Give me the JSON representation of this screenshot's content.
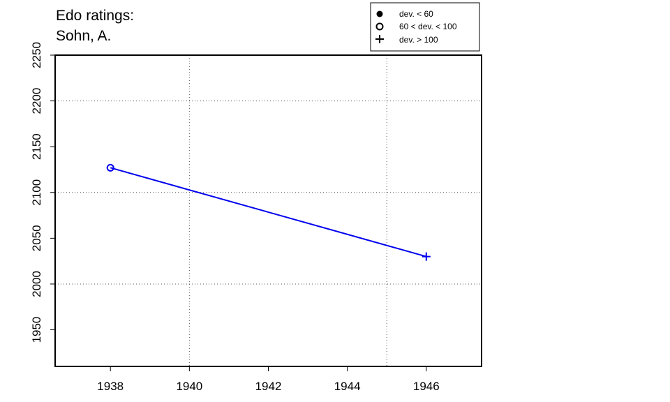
{
  "chart_data": {
    "type": "line",
    "title_lines": [
      "Edo ratings:",
      "Sohn, A."
    ],
    "xlabel": "",
    "ylabel": "",
    "xlim": [
      1936.6,
      1947.4
    ],
    "ylim": [
      1910,
      2250
    ],
    "x_ticks": [
      1938,
      1940,
      1942,
      1944,
      1946
    ],
    "y_ticks": [
      1950,
      2000,
      2050,
      2100,
      2150,
      2200,
      2250
    ],
    "x_grid": [
      1940,
      1945
    ],
    "y_grid": [
      2000,
      2100,
      2200
    ],
    "grid": true,
    "legend_placement": "top-right",
    "legend": [
      {
        "symbol": "filled-circle",
        "label": "dev. < 60"
      },
      {
        "symbol": "open-circle",
        "label": "60 < dev. < 100"
      },
      {
        "symbol": "plus",
        "label": "dev. > 100"
      }
    ],
    "series": [
      {
        "color": "#0000ee",
        "points": [
          {
            "x": 1938,
            "y": 2127,
            "marker": "open-circle"
          },
          {
            "x": 1946,
            "y": 2030,
            "marker": "plus"
          }
        ]
      }
    ]
  }
}
